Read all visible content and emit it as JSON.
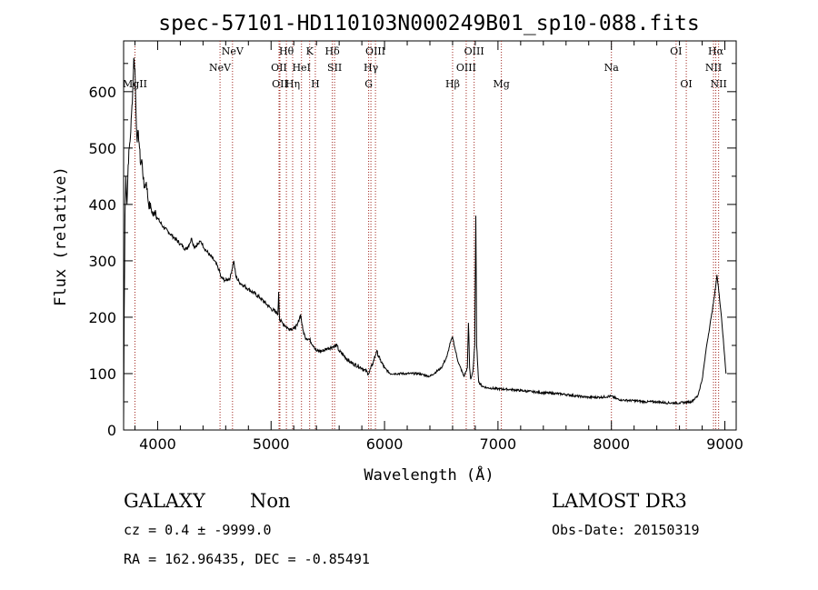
{
  "chart_data": {
    "type": "line",
    "title": "spec-57101-HD110103N000249B01_sp10-088.fits",
    "xlabel": "Wavelength (Å)",
    "ylabel": "Flux (relative)",
    "xlim": [
      3700,
      9100
    ],
    "ylim": [
      0,
      690
    ],
    "xticks": [
      4000,
      5000,
      6000,
      7000,
      8000,
      9000
    ],
    "yticks": [
      0,
      100,
      200,
      300,
      400,
      500,
      600
    ],
    "series": [
      {
        "name": "spectrum",
        "color": "#000000",
        "points": [
          [
            3700,
            10
          ],
          [
            3705,
            200
          ],
          [
            3712,
            380
          ],
          [
            3720,
            450
          ],
          [
            3730,
            400
          ],
          [
            3740,
            470
          ],
          [
            3750,
            500
          ],
          [
            3760,
            520
          ],
          [
            3770,
            560
          ],
          [
            3780,
            600
          ],
          [
            3790,
            660
          ],
          [
            3800,
            640
          ],
          [
            3810,
            560
          ],
          [
            3820,
            510
          ],
          [
            3830,
            530
          ],
          [
            3840,
            500
          ],
          [
            3850,
            470
          ],
          [
            3860,
            480
          ],
          [
            3880,
            430
          ],
          [
            3900,
            440
          ],
          [
            3920,
            400
          ],
          [
            3940,
            395
          ],
          [
            3960,
            380
          ],
          [
            3980,
            390
          ],
          [
            4000,
            375
          ],
          [
            4050,
            360
          ],
          [
            4100,
            350
          ],
          [
            4150,
            340
          ],
          [
            4200,
            330
          ],
          [
            4250,
            320
          ],
          [
            4280,
            330
          ],
          [
            4300,
            340
          ],
          [
            4320,
            325
          ],
          [
            4360,
            330
          ],
          [
            4380,
            335
          ],
          [
            4420,
            320
          ],
          [
            4460,
            310
          ],
          [
            4500,
            300
          ],
          [
            4540,
            285
          ],
          [
            4560,
            270
          ],
          [
            4600,
            265
          ],
          [
            4640,
            270
          ],
          [
            4670,
            300
          ],
          [
            4690,
            272
          ],
          [
            4720,
            262
          ],
          [
            4800,
            250
          ],
          [
            4900,
            235
          ],
          [
            5000,
            215
          ],
          [
            5050,
            208
          ],
          [
            5060,
            205
          ],
          [
            5067,
            245
          ],
          [
            5075,
            195
          ],
          [
            5100,
            190
          ],
          [
            5150,
            180
          ],
          [
            5200,
            180
          ],
          [
            5230,
            185
          ],
          [
            5260,
            205
          ],
          [
            5280,
            178
          ],
          [
            5300,
            165
          ],
          [
            5340,
            160
          ],
          [
            5380,
            148
          ],
          [
            5400,
            140
          ],
          [
            5450,
            140
          ],
          [
            5500,
            145
          ],
          [
            5550,
            148
          ],
          [
            5580,
            150
          ],
          [
            5600,
            140
          ],
          [
            5700,
            120
          ],
          [
            5800,
            110
          ],
          [
            5860,
            100
          ],
          [
            5900,
            120
          ],
          [
            5930,
            140
          ],
          [
            5960,
            125
          ],
          [
            6000,
            110
          ],
          [
            6050,
            100
          ],
          [
            6100,
            100
          ],
          [
            6200,
            100
          ],
          [
            6300,
            100
          ],
          [
            6400,
            95
          ],
          [
            6500,
            110
          ],
          [
            6550,
            130
          ],
          [
            6580,
            155
          ],
          [
            6600,
            165
          ],
          [
            6620,
            145
          ],
          [
            6650,
            120
          ],
          [
            6700,
            95
          ],
          [
            6730,
            110
          ],
          [
            6740,
            190
          ],
          [
            6750,
            110
          ],
          [
            6760,
            90
          ],
          [
            6780,
            105
          ],
          [
            6795,
            150
          ],
          [
            6805,
            380
          ],
          [
            6812,
            150
          ],
          [
            6830,
            85
          ],
          [
            6860,
            78
          ],
          [
            6900,
            75
          ],
          [
            7000,
            73
          ],
          [
            7100,
            72
          ],
          [
            7200,
            70
          ],
          [
            7300,
            68
          ],
          [
            7400,
            66
          ],
          [
            7500,
            65
          ],
          [
            7600,
            63
          ],
          [
            7700,
            60
          ],
          [
            7800,
            58
          ],
          [
            7900,
            58
          ],
          [
            8000,
            60
          ],
          [
            8050,
            55
          ],
          [
            8100,
            53
          ],
          [
            8200,
            52
          ],
          [
            8300,
            50
          ],
          [
            8400,
            50
          ],
          [
            8500,
            48
          ],
          [
            8600,
            48
          ],
          [
            8700,
            50
          ],
          [
            8760,
            60
          ],
          [
            8800,
            90
          ],
          [
            8840,
            150
          ],
          [
            8880,
            200
          ],
          [
            8910,
            240
          ],
          [
            8930,
            275
          ],
          [
            8950,
            240
          ],
          [
            8970,
            200
          ],
          [
            8990,
            150
          ],
          [
            9010,
            100
          ]
        ]
      }
    ],
    "spectral_lines": [
      {
        "label": "MgII",
        "wavelength": 3800,
        "row": 3
      },
      {
        "label": "NeV",
        "wavelength": 4550,
        "row": 2
      },
      {
        "label": "NeV",
        "wavelength": 4660,
        "row": 1
      },
      {
        "label": "OII",
        "wavelength": 5070,
        "row": 2
      },
      {
        "label": "OII",
        "wavelength": 5078,
        "row": 3
      },
      {
        "label": "Hθ",
        "wavelength": 5135,
        "row": 1
      },
      {
        "label": "Hη",
        "wavelength": 5190,
        "row": 3
      },
      {
        "label": "HeI",
        "wavelength": 5268,
        "row": 2
      },
      {
        "label": "K",
        "wavelength": 5340,
        "row": 1
      },
      {
        "label": "H",
        "wavelength": 5390,
        "row": 3
      },
      {
        "label": "Hδ",
        "wavelength": 5540,
        "row": 1
      },
      {
        "label": "SII",
        "wavelength": 5560,
        "row": 2
      },
      {
        "label": "OIII",
        "wavelength": 5920,
        "row": 1
      },
      {
        "label": "Hγ",
        "wavelength": 5880,
        "row": 2
      },
      {
        "label": "G",
        "wavelength": 5860,
        "row": 3
      },
      {
        "label": "Hβ",
        "wavelength": 6600,
        "row": 3
      },
      {
        "label": "OIII",
        "wavelength": 6720,
        "row": 2
      },
      {
        "label": "OIII",
        "wavelength": 6790,
        "row": 1
      },
      {
        "label": "Mg",
        "wavelength": 7030,
        "row": 3
      },
      {
        "label": "Na",
        "wavelength": 8000,
        "row": 2
      },
      {
        "label": "OI",
        "wavelength": 8570,
        "row": 1
      },
      {
        "label": "OI",
        "wavelength": 8660,
        "row": 3
      },
      {
        "label": "Hα",
        "wavelength": 8920,
        "row": 1
      },
      {
        "label": "NII",
        "wavelength": 8900,
        "row": 2
      },
      {
        "label": "NII",
        "wavelength": 8945,
        "row": 3
      }
    ]
  },
  "footer": {
    "class_label": "GALAXY",
    "subclass_label": "Non",
    "redshift_text": "cz = 0.4 ± -9999.0",
    "coords_text": "RA = 162.96435, DEC =  -0.85491",
    "survey_label": "LAMOST DR3",
    "obs_date_text": "Obs-Date: 20150319"
  }
}
